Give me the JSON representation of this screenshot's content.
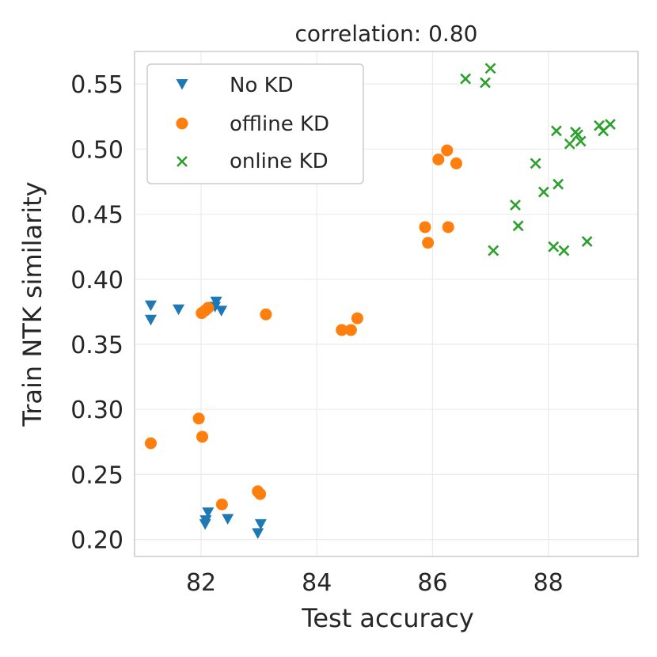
{
  "chart_data": {
    "type": "scatter",
    "title": "correlation: 0.80",
    "xlabel": "Test accuracy",
    "ylabel": "Train NTK similarity",
    "xlim": [
      80.85,
      89.55
    ],
    "ylim": [
      0.187,
      0.575
    ],
    "xticks": [
      82,
      84,
      86,
      88
    ],
    "yticks": [
      0.2,
      0.25,
      0.3,
      0.35,
      0.4,
      0.45,
      0.5,
      0.55
    ],
    "ytick_labels": [
      "0.20",
      "0.25",
      "0.30",
      "0.35",
      "0.40",
      "0.45",
      "0.50",
      "0.55"
    ],
    "grid": true,
    "legend_position": "top-left",
    "series": [
      {
        "name": "No KD",
        "marker": "triangle-down",
        "color": "#1f77b4",
        "points": [
          [
            81.13,
            0.38
          ],
          [
            81.13,
            0.369
          ],
          [
            81.61,
            0.377
          ],
          [
            82.26,
            0.383
          ],
          [
            82.24,
            0.379
          ],
          [
            82.35,
            0.376
          ],
          [
            82.12,
            0.221
          ],
          [
            82.08,
            0.215
          ],
          [
            82.07,
            0.212
          ],
          [
            82.46,
            0.216
          ],
          [
            83.03,
            0.212
          ],
          [
            82.98,
            0.205
          ]
        ]
      },
      {
        "name": "offline KD",
        "marker": "circle",
        "color": "#ff7f0e",
        "points": [
          [
            81.13,
            0.274
          ],
          [
            81.96,
            0.293
          ],
          [
            82.02,
            0.279
          ],
          [
            82.01,
            0.374
          ],
          [
            82.07,
            0.376
          ],
          [
            82.12,
            0.378
          ],
          [
            83.12,
            0.373
          ],
          [
            82.36,
            0.227
          ],
          [
            82.98,
            0.237
          ],
          [
            83.02,
            0.235
          ],
          [
            84.43,
            0.361
          ],
          [
            84.59,
            0.361
          ],
          [
            84.7,
            0.37
          ],
          [
            85.87,
            0.44
          ],
          [
            85.92,
            0.428
          ],
          [
            86.27,
            0.44
          ],
          [
            86.1,
            0.492
          ],
          [
            86.25,
            0.499
          ],
          [
            86.41,
            0.489
          ]
        ]
      },
      {
        "name": "online KD",
        "marker": "x",
        "color": "#2ca02c",
        "points": [
          [
            86.57,
            0.554
          ],
          [
            86.91,
            0.551
          ],
          [
            87.0,
            0.562
          ],
          [
            87.05,
            0.422
          ],
          [
            87.43,
            0.457
          ],
          [
            87.48,
            0.441
          ],
          [
            87.78,
            0.489
          ],
          [
            87.92,
            0.467
          ],
          [
            88.14,
            0.514
          ],
          [
            88.17,
            0.473
          ],
          [
            88.09,
            0.425
          ],
          [
            88.27,
            0.422
          ],
          [
            88.37,
            0.504
          ],
          [
            88.47,
            0.513
          ],
          [
            88.51,
            0.511
          ],
          [
            88.56,
            0.506
          ],
          [
            88.67,
            0.429
          ],
          [
            88.88,
            0.518
          ],
          [
            88.95,
            0.514
          ],
          [
            89.07,
            0.519
          ]
        ]
      }
    ]
  }
}
